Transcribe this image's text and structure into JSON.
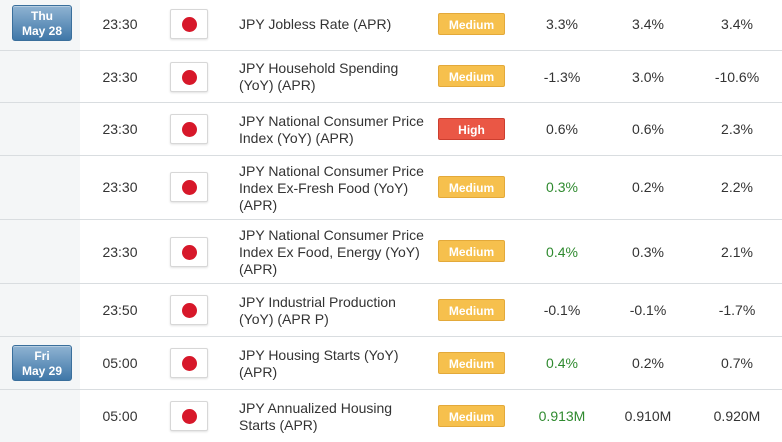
{
  "events": [
    {
      "date": {
        "day": "Thu",
        "md": "May 28"
      },
      "time": "23:30",
      "event": "JPY Jobless Rate (APR)",
      "importance": "Medium",
      "actual": "3.3%",
      "actual_color": "#333333",
      "forecast": "3.4%",
      "previous": "3.4%",
      "flag": "japan-flag-icon"
    },
    {
      "date": null,
      "time": "23:30",
      "event": "JPY Household Spending (YoY) (APR)",
      "importance": "Medium",
      "actual": "-1.3%",
      "actual_color": "#333333",
      "forecast": "3.0%",
      "previous": "-10.6%",
      "flag": "japan-flag-icon"
    },
    {
      "date": null,
      "time": "23:30",
      "event": "JPY National Consumer Price Index (YoY) (APR)",
      "importance": "High",
      "actual": "0.6%",
      "actual_color": "#333333",
      "forecast": "0.6%",
      "previous": "2.3%",
      "flag": "japan-flag-icon"
    },
    {
      "date": null,
      "time": "23:30",
      "event": "JPY National Consumer Price Index Ex-Fresh Food (YoY) (APR)",
      "importance": "Medium",
      "actual": "0.3%",
      "actual_color": "#2f8a2f",
      "forecast": "0.2%",
      "previous": "2.2%",
      "flag": "japan-flag-icon"
    },
    {
      "date": null,
      "time": "23:30",
      "event": "JPY National Consumer Price Index Ex Food, Energy (YoY) (APR)",
      "importance": "Medium",
      "actual": "0.4%",
      "actual_color": "#2f8a2f",
      "forecast": "0.3%",
      "previous": "2.1%",
      "flag": "japan-flag-icon"
    },
    {
      "date": null,
      "time": "23:50",
      "event": "JPY Industrial Production (YoY) (APR P)",
      "importance": "Medium",
      "actual": "-0.1%",
      "actual_color": "#333333",
      "forecast": "-0.1%",
      "previous": "-1.7%",
      "flag": "japan-flag-icon"
    },
    {
      "date": {
        "day": "Fri",
        "md": "May 29"
      },
      "time": "05:00",
      "event": "JPY Housing Starts (YoY) (APR)",
      "importance": "Medium",
      "actual": "0.4%",
      "actual_color": "#2f8a2f",
      "forecast": "0.2%",
      "previous": "0.7%",
      "flag": "japan-flag-icon"
    },
    {
      "date": null,
      "time": "05:00",
      "event": "JPY Annualized Housing Starts (APR)",
      "importance": "Medium",
      "actual": "0.913M",
      "actual_color": "#2f8a2f",
      "forecast": "0.910M",
      "previous": "0.920M",
      "flag": "japan-flag-icon"
    }
  ],
  "colors": {
    "medium": "#f6c04d",
    "high": "#ea5745",
    "date_badge": "#3f77a8",
    "beat": "#2f8a2f"
  }
}
